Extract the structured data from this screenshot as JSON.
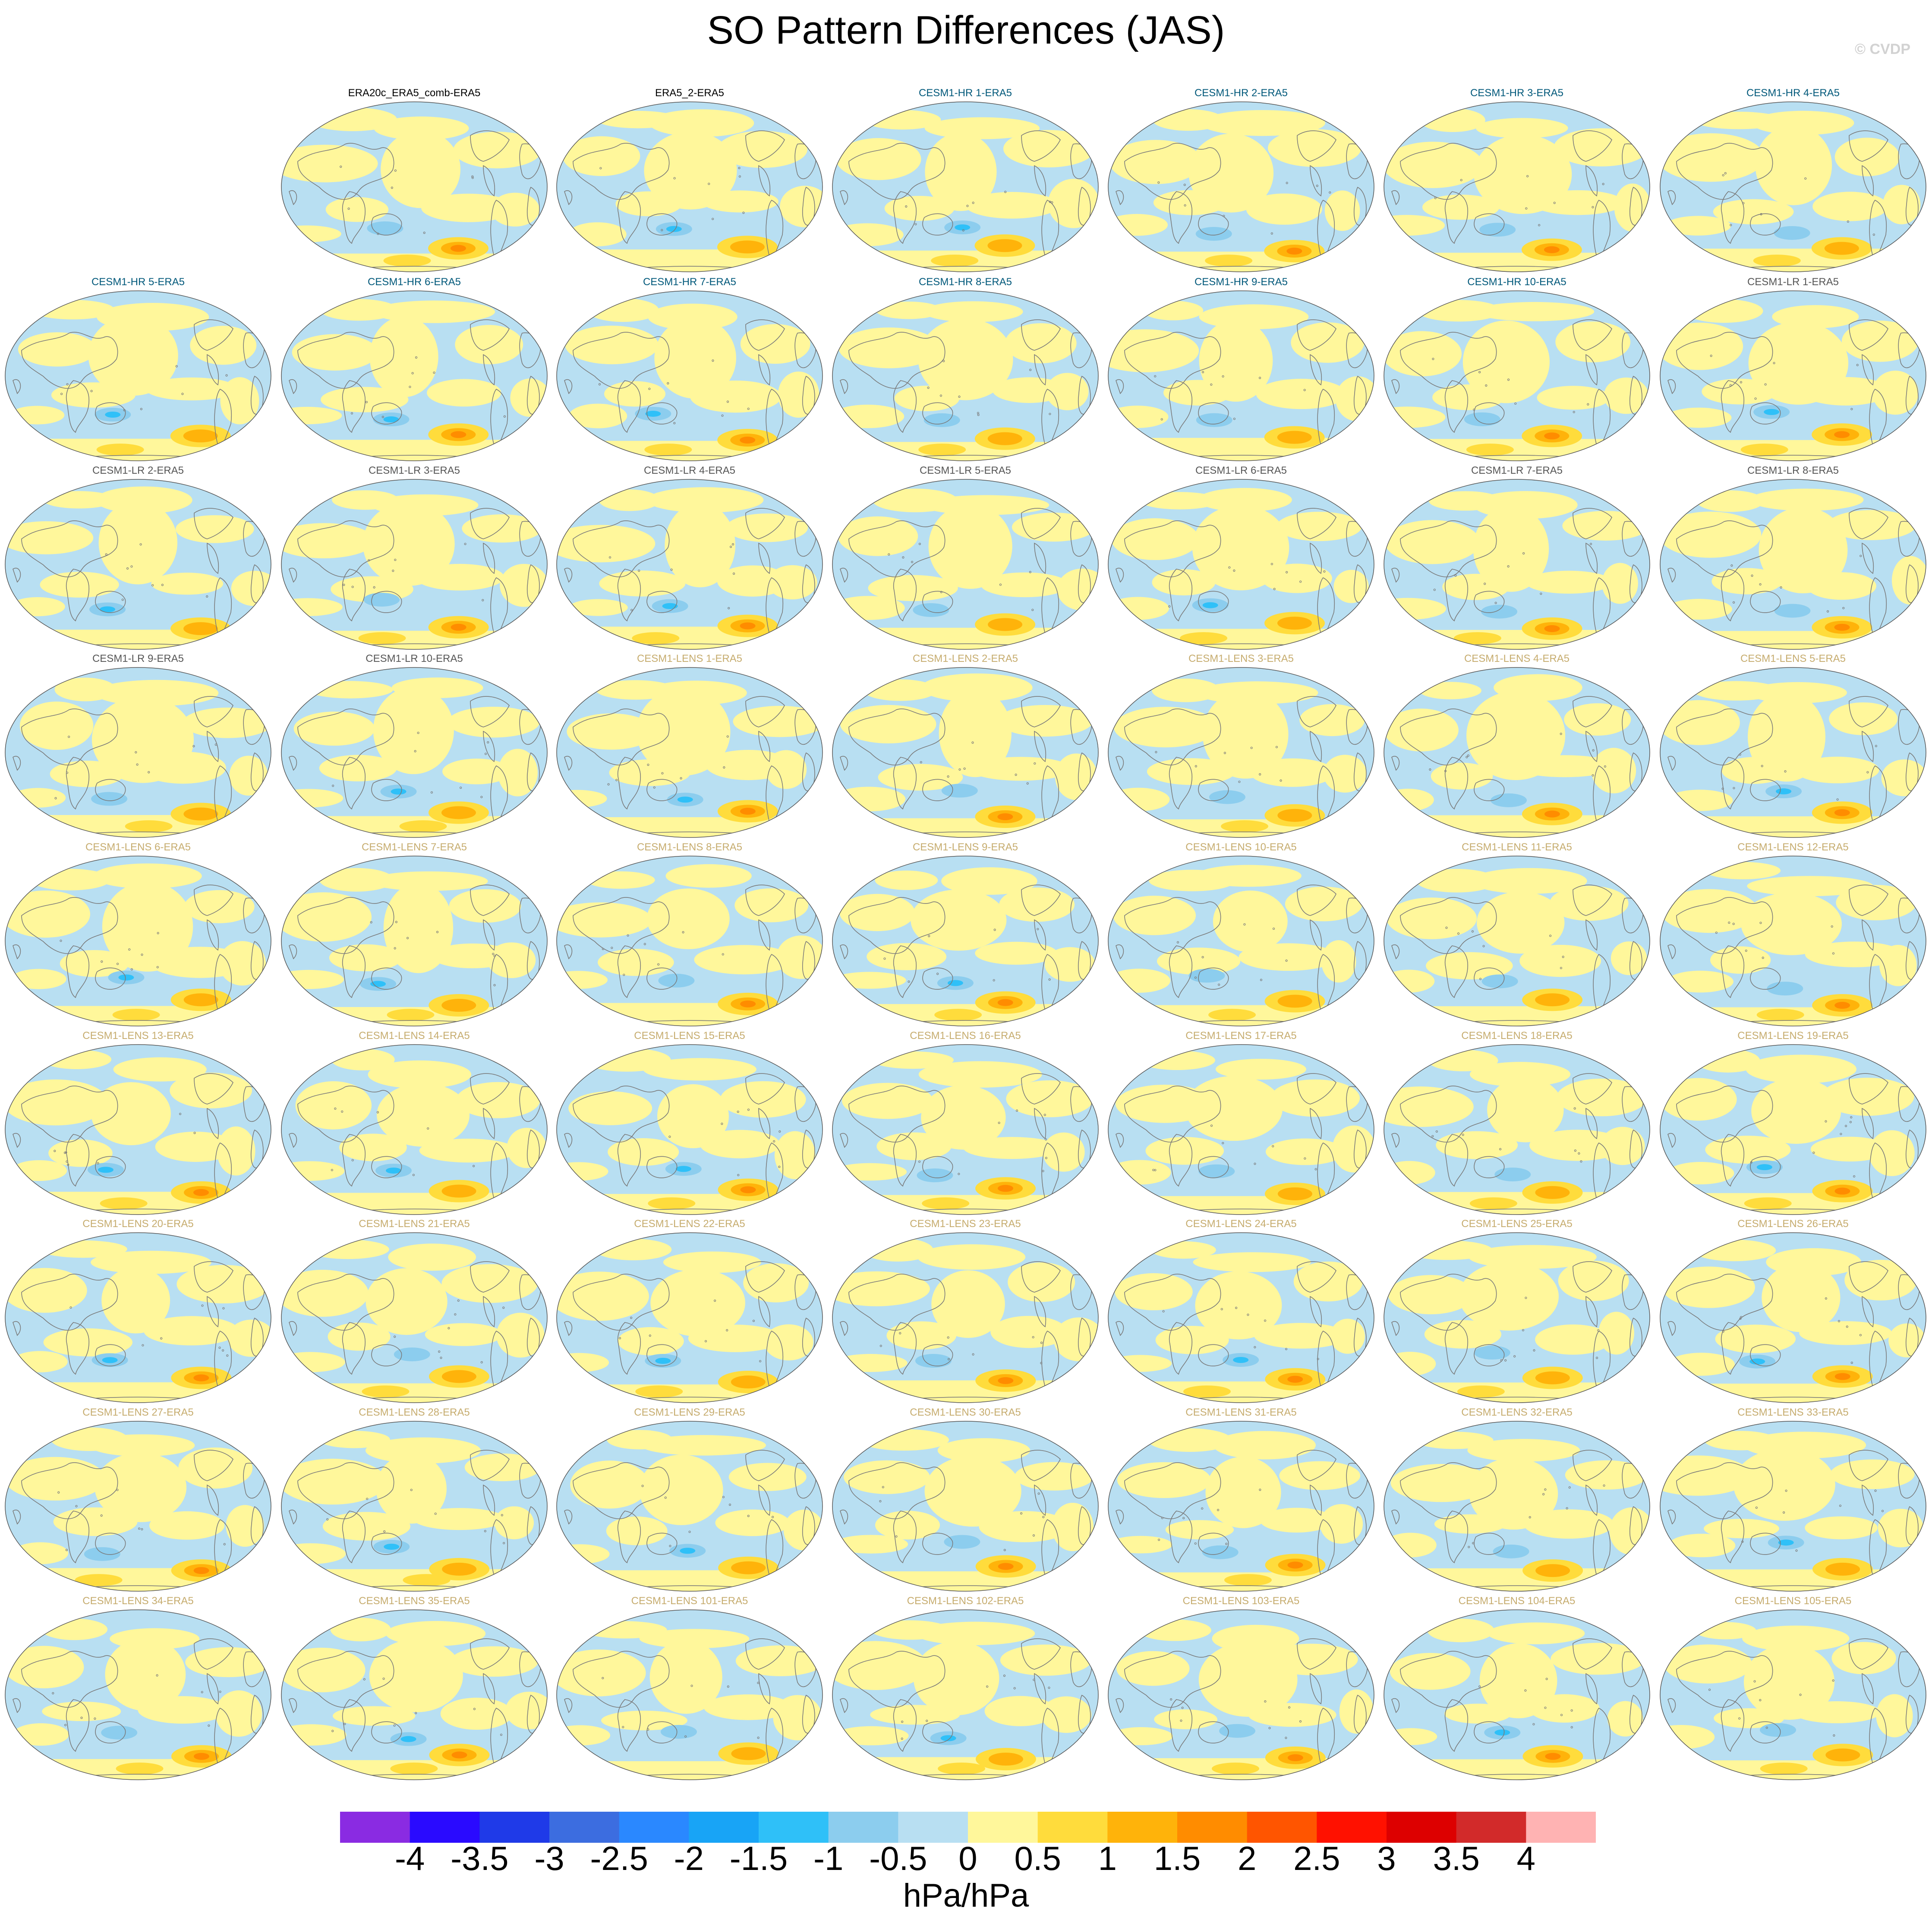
{
  "title": "SO Pattern Differences (JAS)",
  "copyright": "© CVDP",
  "colors": {
    "neg": "#b8dff2",
    "pos": "#fff79b",
    "coast": "#7a7a7a",
    "label_obs": "#000000",
    "label_hr": "#00587a",
    "label_lr": "#555555",
    "label_lens": "#c6ac6e"
  },
  "panels": [
    {
      "label": "ERA20c_ERA5_comb-ERA5",
      "group": "obs"
    },
    {
      "label": "ERA5_2-ERA5",
      "group": "obs"
    },
    {
      "label": "CESM1-HR 1-ERA5",
      "group": "hr"
    },
    {
      "label": "CESM1-HR 2-ERA5",
      "group": "hr"
    },
    {
      "label": "CESM1-HR 3-ERA5",
      "group": "hr"
    },
    {
      "label": "CESM1-HR 4-ERA5",
      "group": "hr"
    },
    {
      "label": "CESM1-HR 5-ERA5",
      "group": "hr"
    },
    {
      "label": "CESM1-HR 6-ERA5",
      "group": "hr"
    },
    {
      "label": "CESM1-HR 7-ERA5",
      "group": "hr"
    },
    {
      "label": "CESM1-HR 8-ERA5",
      "group": "hr"
    },
    {
      "label": "CESM1-HR 9-ERA5",
      "group": "hr"
    },
    {
      "label": "CESM1-HR 10-ERA5",
      "group": "hr"
    },
    {
      "label": "CESM1-LR 1-ERA5",
      "group": "lr"
    },
    {
      "label": "CESM1-LR 2-ERA5",
      "group": "lr"
    },
    {
      "label": "CESM1-LR 3-ERA5",
      "group": "lr"
    },
    {
      "label": "CESM1-LR 4-ERA5",
      "group": "lr"
    },
    {
      "label": "CESM1-LR 5-ERA5",
      "group": "lr"
    },
    {
      "label": "CESM1-LR 6-ERA5",
      "group": "lr"
    },
    {
      "label": "CESM1-LR 7-ERA5",
      "group": "lr"
    },
    {
      "label": "CESM1-LR 8-ERA5",
      "group": "lr"
    },
    {
      "label": "CESM1-LR 9-ERA5",
      "group": "lr"
    },
    {
      "label": "CESM1-LR 10-ERA5",
      "group": "lr"
    },
    {
      "label": "CESM1-LENS 1-ERA5",
      "group": "lens"
    },
    {
      "label": "CESM1-LENS 2-ERA5",
      "group": "lens"
    },
    {
      "label": "CESM1-LENS 3-ERA5",
      "group": "lens"
    },
    {
      "label": "CESM1-LENS 4-ERA5",
      "group": "lens"
    },
    {
      "label": "CESM1-LENS 5-ERA5",
      "group": "lens"
    },
    {
      "label": "CESM1-LENS 6-ERA5",
      "group": "lens"
    },
    {
      "label": "CESM1-LENS 7-ERA5",
      "group": "lens"
    },
    {
      "label": "CESM1-LENS 8-ERA5",
      "group": "lens"
    },
    {
      "label": "CESM1-LENS 9-ERA5",
      "group": "lens"
    },
    {
      "label": "CESM1-LENS 10-ERA5",
      "group": "lens"
    },
    {
      "label": "CESM1-LENS 11-ERA5",
      "group": "lens"
    },
    {
      "label": "CESM1-LENS 12-ERA5",
      "group": "lens"
    },
    {
      "label": "CESM1-LENS 13-ERA5",
      "group": "lens"
    },
    {
      "label": "CESM1-LENS 14-ERA5",
      "group": "lens"
    },
    {
      "label": "CESM1-LENS 15-ERA5",
      "group": "lens"
    },
    {
      "label": "CESM1-LENS 16-ERA5",
      "group": "lens"
    },
    {
      "label": "CESM1-LENS 17-ERA5",
      "group": "lens"
    },
    {
      "label": "CESM1-LENS 18-ERA5",
      "group": "lens"
    },
    {
      "label": "CESM1-LENS 19-ERA5",
      "group": "lens"
    },
    {
      "label": "CESM1-LENS 20-ERA5",
      "group": "lens"
    },
    {
      "label": "CESM1-LENS 21-ERA5",
      "group": "lens"
    },
    {
      "label": "CESM1-LENS 22-ERA5",
      "group": "lens"
    },
    {
      "label": "CESM1-LENS 23-ERA5",
      "group": "lens"
    },
    {
      "label": "CESM1-LENS 24-ERA5",
      "group": "lens"
    },
    {
      "label": "CESM1-LENS 25-ERA5",
      "group": "lens"
    },
    {
      "label": "CESM1-LENS 26-ERA5",
      "group": "lens"
    },
    {
      "label": "CESM1-LENS 27-ERA5",
      "group": "lens"
    },
    {
      "label": "CESM1-LENS 28-ERA5",
      "group": "lens"
    },
    {
      "label": "CESM1-LENS 29-ERA5",
      "group": "lens"
    },
    {
      "label": "CESM1-LENS 30-ERA5",
      "group": "lens"
    },
    {
      "label": "CESM1-LENS 31-ERA5",
      "group": "lens"
    },
    {
      "label": "CESM1-LENS 32-ERA5",
      "group": "lens"
    },
    {
      "label": "CESM1-LENS 33-ERA5",
      "group": "lens"
    },
    {
      "label": "CESM1-LENS 34-ERA5",
      "group": "lens"
    },
    {
      "label": "CESM1-LENS 35-ERA5",
      "group": "lens"
    },
    {
      "label": "CESM1-LENS 101-ERA5",
      "group": "lens"
    },
    {
      "label": "CESM1-LENS 102-ERA5",
      "group": "lens"
    },
    {
      "label": "CESM1-LENS 103-ERA5",
      "group": "lens"
    },
    {
      "label": "CESM1-LENS 104-ERA5",
      "group": "lens"
    },
    {
      "label": "CESM1-LENS 105-ERA5",
      "group": "lens"
    }
  ],
  "colorbar": {
    "levels": [
      "-4",
      "-3.5",
      "-3",
      "-2.5",
      "-2",
      "-1.5",
      "-1",
      "-0.5",
      "0",
      "0.5",
      "1",
      "1.5",
      "2",
      "2.5",
      "3",
      "3.5",
      "4"
    ],
    "colors": [
      "#8a2be2",
      "#2a0aff",
      "#1f3ae8",
      "#3c6de0",
      "#2a88ff",
      "#18a4f6",
      "#2fc0f8",
      "#8ccdee",
      "#b8dff2",
      "#fff79b",
      "#ffdc3c",
      "#ffb30a",
      "#ff8c00",
      "#ff5500",
      "#ff1100",
      "#dd0000",
      "#d22a2a",
      "#ffb3b3"
    ],
    "units": "hPa/hPa"
  }
}
